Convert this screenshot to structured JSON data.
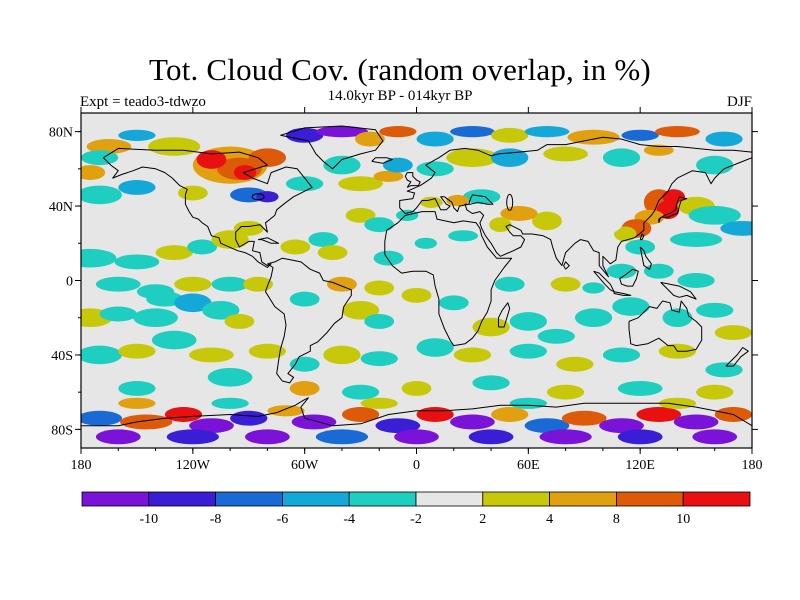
{
  "title": "Tot. Cloud Cov. (random overlap, in %)",
  "subtitle": "14.0kyr BP - 014kyr BP",
  "experiment": "Expt = teado3-tdwzo",
  "season": "DJF",
  "map": {
    "projection": "cylindrical-equidistant",
    "lon_range": [
      -180,
      180
    ],
    "lat_range": [
      -90,
      90
    ],
    "lat_ticks": [
      {
        "value": 80,
        "label": "80N"
      },
      {
        "value": 40,
        "label": "40N"
      },
      {
        "value": 0,
        "label": "0"
      },
      {
        "value": -40,
        "label": "40S"
      },
      {
        "value": -80,
        "label": "80S"
      }
    ],
    "lon_ticks": [
      {
        "value": -180,
        "label": "180"
      },
      {
        "value": -120,
        "label": "120W"
      },
      {
        "value": -60,
        "label": "60W"
      },
      {
        "value": 0,
        "label": "0"
      },
      {
        "value": 60,
        "label": "60E"
      },
      {
        "value": 120,
        "label": "120E"
      },
      {
        "value": 180,
        "label": "180"
      }
    ]
  },
  "colorbar": {
    "colors": [
      "#7a12d8",
      "#3a1ed6",
      "#1a6ad6",
      "#14a8d8",
      "#1ecec0",
      "#e6e6e6",
      "#c8c80a",
      "#e0a010",
      "#dc5a08",
      "#e81010"
    ],
    "labels": [
      {
        "boundary": 1,
        "label": "-10"
      },
      {
        "boundary": 2,
        "label": "-8"
      },
      {
        "boundary": 3,
        "label": "-6"
      },
      {
        "boundary": 4,
        "label": "-4"
      },
      {
        "boundary": 5,
        "label": "-2"
      },
      {
        "boundary": 6,
        "label": "2"
      },
      {
        "boundary": 7,
        "label": "4"
      },
      {
        "boundary": 8,
        "label": "8"
      },
      {
        "boundary": 9,
        "label": "10"
      }
    ]
  }
}
